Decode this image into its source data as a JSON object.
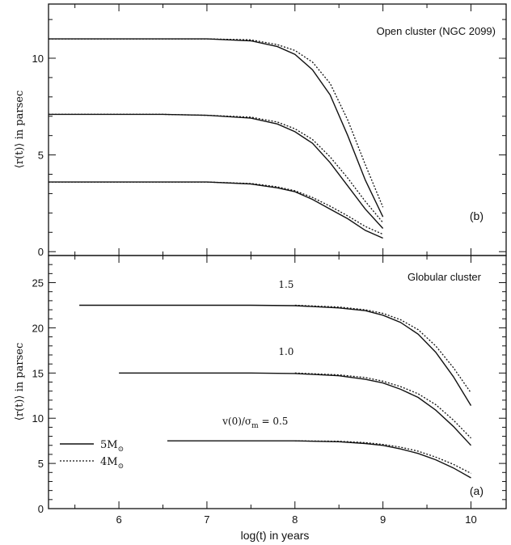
{
  "chart_data": [
    {
      "id": "b",
      "type": "line",
      "title": "Open cluster (NGC 2099)",
      "panel_label": "(b)",
      "ylabel": "⟨r(t)⟩ in parsec",
      "xlim": [
        5.2,
        10.4
      ],
      "ylim": [
        -0.2,
        12.8
      ],
      "yticks": [
        0,
        5,
        10
      ],
      "series": [
        {
          "style": "solid",
          "x": [
            5.0,
            6.0,
            6.5,
            7.0,
            7.5,
            7.8,
            8.0,
            8.2,
            8.4,
            8.6,
            8.8,
            9.0
          ],
          "y": [
            11.0,
            11.0,
            11.0,
            11.0,
            10.9,
            10.6,
            10.2,
            9.4,
            8.1,
            6.0,
            3.7,
            1.8
          ]
        },
        {
          "style": "dotted",
          "x": [
            5.0,
            6.0,
            6.5,
            7.0,
            7.5,
            7.8,
            8.0,
            8.2,
            8.4,
            8.6,
            8.8,
            9.0
          ],
          "y": [
            11.0,
            11.0,
            11.0,
            11.0,
            10.95,
            10.7,
            10.4,
            9.8,
            8.7,
            6.8,
            4.5,
            2.3
          ]
        },
        {
          "style": "solid",
          "x": [
            5.0,
            6.0,
            6.5,
            7.0,
            7.5,
            7.8,
            8.0,
            8.2,
            8.4,
            8.6,
            8.8,
            9.0
          ],
          "y": [
            7.1,
            7.1,
            7.1,
            7.05,
            6.9,
            6.6,
            6.2,
            5.6,
            4.6,
            3.4,
            2.2,
            1.2
          ]
        },
        {
          "style": "dotted",
          "x": [
            5.0,
            6.0,
            6.5,
            7.0,
            7.5,
            7.8,
            8.0,
            8.2,
            8.4,
            8.6,
            8.8,
            9.0
          ],
          "y": [
            7.1,
            7.1,
            7.1,
            7.05,
            6.95,
            6.7,
            6.35,
            5.8,
            4.9,
            3.8,
            2.6,
            1.5
          ]
        },
        {
          "style": "solid",
          "x": [
            5.0,
            6.0,
            6.5,
            7.0,
            7.5,
            7.8,
            8.0,
            8.2,
            8.4,
            8.6,
            8.8,
            9.0
          ],
          "y": [
            3.6,
            3.6,
            3.6,
            3.6,
            3.5,
            3.3,
            3.1,
            2.7,
            2.2,
            1.7,
            1.1,
            0.7
          ]
        },
        {
          "style": "dotted",
          "x": [
            5.0,
            6.0,
            6.5,
            7.0,
            7.5,
            7.8,
            8.0,
            8.2,
            8.4,
            8.6,
            8.8,
            9.0
          ],
          "y": [
            3.6,
            3.6,
            3.6,
            3.6,
            3.52,
            3.35,
            3.15,
            2.8,
            2.35,
            1.85,
            1.3,
            0.9
          ]
        }
      ]
    },
    {
      "id": "a",
      "type": "line",
      "title": "Globular cluster",
      "panel_label": "(a)",
      "xlabel": "log(t) in years",
      "ylabel": "⟨r(t)⟩ in parsec",
      "xlim": [
        5.2,
        10.4
      ],
      "ylim": [
        0,
        28
      ],
      "xticks": [
        6,
        7,
        8,
        9,
        10
      ],
      "yticks": [
        0,
        5,
        10,
        15,
        20,
        25
      ],
      "annotations": [
        {
          "text": "1.5",
          "x": 7.9,
          "y": 24.4
        },
        {
          "text": "1.0",
          "x": 7.9,
          "y": 17.0
        },
        {
          "text": "v(0)/σ",
          "sub": "m",
          "suffix": " = 0.5",
          "x": 7.55,
          "y": 9.3
        }
      ],
      "legend": {
        "position": "bottom-left",
        "entries": [
          {
            "style": "solid",
            "label": "5M",
            "sub": "⊙"
          },
          {
            "style": "dotted",
            "label": "4M",
            "sub": "⊙"
          }
        ]
      },
      "series": [
        {
          "style": "solid",
          "x": [
            5.55,
            6.5,
            7.5,
            8.0,
            8.5,
            8.8,
            9.0,
            9.2,
            9.4,
            9.6,
            9.8,
            10.0
          ],
          "y": [
            22.5,
            22.5,
            22.5,
            22.45,
            22.2,
            21.9,
            21.4,
            20.6,
            19.3,
            17.3,
            14.6,
            11.4
          ]
        },
        {
          "style": "dotted",
          "x": [
            8.0,
            8.5,
            8.8,
            9.0,
            9.2,
            9.4,
            9.6,
            9.8,
            10.0
          ],
          "y": [
            22.5,
            22.3,
            22.0,
            21.6,
            20.9,
            19.8,
            18.0,
            15.6,
            12.8
          ]
        },
        {
          "style": "solid",
          "x": [
            6.0,
            7.0,
            7.5,
            8.0,
            8.5,
            8.8,
            9.0,
            9.2,
            9.4,
            9.6,
            9.8,
            10.0
          ],
          "y": [
            15.0,
            15.0,
            15.0,
            14.95,
            14.7,
            14.3,
            13.9,
            13.2,
            12.3,
            10.9,
            9.1,
            7.0
          ]
        },
        {
          "style": "dotted",
          "x": [
            8.0,
            8.5,
            8.8,
            9.0,
            9.2,
            9.4,
            9.6,
            9.8,
            10.0
          ],
          "y": [
            15.0,
            14.8,
            14.5,
            14.1,
            13.5,
            12.7,
            11.5,
            9.8,
            7.8
          ]
        },
        {
          "style": "solid",
          "x": [
            6.55,
            7.5,
            8.0,
            8.5,
            8.8,
            9.0,
            9.2,
            9.4,
            9.6,
            9.8,
            10.0
          ],
          "y": [
            7.5,
            7.5,
            7.5,
            7.4,
            7.2,
            7.0,
            6.6,
            6.1,
            5.4,
            4.5,
            3.4
          ]
        },
        {
          "style": "dotted",
          "x": [
            8.0,
            8.5,
            8.8,
            9.0,
            9.2,
            9.4,
            9.6,
            9.8,
            10.0
          ],
          "y": [
            7.5,
            7.45,
            7.3,
            7.1,
            6.8,
            6.35,
            5.7,
            4.9,
            3.9
          ]
        }
      ]
    }
  ]
}
